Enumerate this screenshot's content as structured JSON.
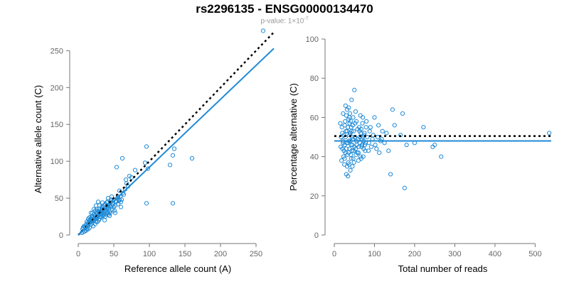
{
  "title": "rs2296135 - ENSG00000134470",
  "subtitle": {
    "prefix": "p-value: 1×10",
    "exponent": "-7"
  },
  "colors": {
    "points": "#1f8ad6",
    "fit_line": "#1f8ad6",
    "reference_line": "#000000",
    "axis": "#777777"
  },
  "chart_data": [
    {
      "type": "scatter",
      "xlabel": "Reference allele count (A)",
      "ylabel": "Alternative allele count (C)",
      "xlim": [
        0,
        280
      ],
      "ylim": [
        0,
        260
      ],
      "xticks": [
        0,
        50,
        100,
        150,
        200,
        250
      ],
      "yticks": [
        0,
        50,
        100,
        150,
        200,
        250
      ],
      "grid": false,
      "reference_line": {
        "style": "dotted",
        "slope": 1,
        "intercept": 0
      },
      "fit_line": {
        "style": "solid",
        "slope": 0.92,
        "intercept": 0
      },
      "points": [
        [
          260,
          277
        ],
        [
          160,
          104
        ],
        [
          133,
          43
        ],
        [
          133,
          108
        ],
        [
          135,
          117
        ],
        [
          129,
          95
        ],
        [
          96,
          120
        ],
        [
          96,
          43
        ],
        [
          98,
          90
        ],
        [
          94,
          98
        ],
        [
          62,
          104
        ],
        [
          54,
          92
        ],
        [
          72,
          80
        ],
        [
          75,
          78
        ],
        [
          80,
          88
        ],
        [
          67,
          75
        ],
        [
          63,
          57
        ],
        [
          58,
          60
        ],
        [
          56,
          42
        ],
        [
          60,
          38
        ],
        [
          55,
          50
        ],
        [
          50,
          48
        ],
        [
          48,
          35
        ],
        [
          45,
          45
        ],
        [
          43,
          28
        ],
        [
          42,
          50
        ],
        [
          40,
          36
        ],
        [
          38,
          42
        ],
        [
          36,
          30
        ],
        [
          35,
          26
        ],
        [
          34,
          44
        ],
        [
          33,
          38
        ],
        [
          32,
          24
        ],
        [
          31,
          32
        ],
        [
          30,
          22
        ],
        [
          29,
          35
        ],
        [
          28,
          27
        ],
        [
          27,
          18
        ],
        [
          26,
          30
        ],
        [
          25,
          40
        ],
        [
          24,
          15
        ],
        [
          23,
          22
        ],
        [
          22,
          28
        ],
        [
          21,
          12
        ],
        [
          20,
          19
        ],
        [
          19,
          25
        ],
        [
          18,
          14
        ],
        [
          17,
          20
        ],
        [
          16,
          10
        ],
        [
          15,
          16
        ],
        [
          14,
          8
        ],
        [
          13,
          12
        ],
        [
          12,
          18
        ],
        [
          11,
          6
        ],
        [
          10,
          10
        ],
        [
          9,
          5
        ],
        [
          8,
          12
        ],
        [
          7,
          4
        ],
        [
          6,
          8
        ],
        [
          5,
          3
        ],
        [
          37,
          20
        ],
        [
          39,
          28
        ],
        [
          41,
          40
        ],
        [
          44,
          32
        ],
        [
          46,
          38
        ],
        [
          47,
          52
        ],
        [
          49,
          42
        ],
        [
          51,
          33
        ],
        [
          53,
          45
        ],
        [
          52,
          30
        ],
        [
          57,
          46
        ],
        [
          59,
          52
        ],
        [
          61,
          48
        ],
        [
          64,
          55
        ],
        [
          66,
          62
        ],
        [
          68,
          70
        ],
        [
          70,
          66
        ],
        [
          28,
          45
        ],
        [
          30,
          40
        ],
        [
          26,
          35
        ],
        [
          24,
          33
        ],
        [
          22,
          20
        ],
        [
          20,
          24
        ],
        [
          18,
          30
        ],
        [
          16,
          24
        ],
        [
          30,
          30
        ],
        [
          32,
          28
        ],
        [
          34,
          33
        ],
        [
          36,
          40
        ],
        [
          38,
          25
        ],
        [
          40,
          30
        ],
        [
          42,
          38
        ],
        [
          44,
          40
        ],
        [
          25,
          25
        ],
        [
          27,
          24
        ],
        [
          29,
          29
        ],
        [
          31,
          31
        ],
        [
          33,
          35
        ],
        [
          35,
          34
        ],
        [
          15,
          20
        ],
        [
          17,
          17
        ],
        [
          19,
          19
        ],
        [
          21,
          22
        ],
        [
          23,
          26
        ],
        [
          13,
          16
        ],
        [
          11,
          14
        ],
        [
          9,
          11
        ],
        [
          7,
          10
        ],
        [
          12,
          8
        ],
        [
          14,
          13
        ],
        [
          25,
          18
        ],
        [
          27,
          30
        ],
        [
          29,
          20
        ],
        [
          31,
          25
        ],
        [
          33,
          29
        ],
        [
          35,
          38
        ],
        [
          37,
          33
        ],
        [
          39,
          34
        ],
        [
          41,
          45
        ],
        [
          43,
          36
        ],
        [
          45,
          30
        ],
        [
          22,
          35
        ],
        [
          24,
          26
        ],
        [
          26,
          22
        ],
        [
          28,
          32
        ],
        [
          20,
          30
        ],
        [
          18,
          22
        ],
        [
          16,
          18
        ],
        [
          14,
          22
        ],
        [
          48,
          44
        ],
        [
          50,
          38
        ],
        [
          52,
          40
        ],
        [
          54,
          46
        ],
        [
          56,
          52
        ],
        [
          58,
          48
        ],
        [
          60,
          45
        ],
        [
          46,
          48
        ],
        [
          44,
          26
        ],
        [
          42,
          30
        ],
        [
          40,
          44
        ],
        [
          38,
          36
        ],
        [
          36,
          28
        ]
      ]
    },
    {
      "type": "scatter",
      "xlabel": "Total number of reads",
      "ylabel": "Percentage alternative (C)",
      "xlim": [
        0,
        540
      ],
      "ylim": [
        0,
        100
      ],
      "xticks": [
        0,
        100,
        200,
        300,
        400,
        500
      ],
      "yticks": [
        0,
        20,
        40,
        60,
        80,
        100
      ],
      "grid": false,
      "reference_line": {
        "style": "dotted",
        "value": 50.5
      },
      "fit_line": {
        "style": "solid",
        "value": 48
      },
      "points": [
        [
          535,
          52
        ],
        [
          266,
          40
        ],
        [
          250,
          46
        ],
        [
          245,
          45
        ],
        [
          222,
          55
        ],
        [
          200,
          47
        ],
        [
          180,
          46
        ],
        [
          175,
          24
        ],
        [
          170,
          62
        ],
        [
          165,
          51
        ],
        [
          150,
          56
        ],
        [
          145,
          64
        ],
        [
          140,
          31
        ],
        [
          135,
          43
        ],
        [
          130,
          52
        ],
        [
          125,
          47
        ],
        [
          120,
          53
        ],
        [
          115,
          48
        ],
        [
          110,
          56
        ],
        [
          105,
          44
        ],
        [
          100,
          60
        ],
        [
          95,
          49
        ],
        [
          90,
          55
        ],
        [
          85,
          43
        ],
        [
          80,
          58
        ],
        [
          78,
          47
        ],
        [
          75,
          52
        ],
        [
          72,
          40
        ],
        [
          70,
          57
        ],
        [
          68,
          45
        ],
        [
          65,
          61
        ],
        [
          63,
          50
        ],
        [
          60,
          38
        ],
        [
          58,
          54
        ],
        [
          55,
          48
        ],
        [
          53,
          63
        ],
        [
          50,
          74
        ],
        [
          48,
          43
        ],
        [
          46,
          56
        ],
        [
          45,
          35
        ],
        [
          44,
          50
        ],
        [
          43,
          69
        ],
        [
          42,
          46
        ],
        [
          41,
          58
        ],
        [
          40,
          33
        ],
        [
          39,
          52
        ],
        [
          38,
          44
        ],
        [
          37,
          60
        ],
        [
          36,
          48
        ],
        [
          35,
          37
        ],
        [
          34,
          55
        ],
        [
          33,
          41
        ],
        [
          32,
          64
        ],
        [
          31,
          47
        ],
        [
          30,
          31
        ],
        [
          29,
          53
        ],
        [
          28,
          42
        ],
        [
          27,
          58
        ],
        [
          26,
          46
        ],
        [
          25,
          36
        ],
        [
          24,
          51
        ],
        [
          23,
          40
        ],
        [
          22,
          62
        ],
        [
          21,
          48
        ],
        [
          20,
          44
        ],
        [
          19,
          55
        ],
        [
          18,
          38
        ],
        [
          17,
          50
        ],
        [
          16,
          45
        ],
        [
          15,
          57
        ],
        [
          60,
          42
        ],
        [
          62,
          55
        ],
        [
          64,
          47
        ],
        [
          66,
          52
        ],
        [
          67,
          39
        ],
        [
          69,
          49
        ],
        [
          71,
          60
        ],
        [
          73,
          44
        ],
        [
          74,
          51
        ],
        [
          76,
          46
        ],
        [
          56,
          46
        ],
        [
          54,
          41
        ],
        [
          52,
          57
        ],
        [
          50,
          45
        ],
        [
          48,
          53
        ],
        [
          47,
          39
        ],
        [
          46,
          49
        ],
        [
          44,
          43
        ],
        [
          42,
          55
        ],
        [
          40,
          48
        ],
        [
          38,
          51
        ],
        [
          36,
          42
        ],
        [
          34,
          47
        ],
        [
          32,
          53
        ],
        [
          30,
          44
        ],
        [
          28,
          50
        ],
        [
          26,
          56
        ],
        [
          24,
          43
        ],
        [
          22,
          47
        ],
        [
          20,
          52
        ],
        [
          35,
          59
        ],
        [
          37,
          36
        ],
        [
          39,
          62
        ],
        [
          41,
          41
        ],
        [
          43,
          53
        ],
        [
          45,
          46
        ],
        [
          47,
          60
        ],
        [
          49,
          37
        ],
        [
          51,
          50
        ],
        [
          53,
          44
        ],
        [
          55,
          58
        ],
        [
          57,
          42
        ],
        [
          59,
          49
        ],
        [
          61,
          45
        ],
        [
          63,
          53
        ],
        [
          65,
          40
        ],
        [
          67,
          54
        ],
        [
          69,
          46
        ],
        [
          71,
          50
        ],
        [
          73,
          48
        ],
        [
          77,
          43
        ],
        [
          79,
          55
        ],
        [
          82,
          50
        ],
        [
          86,
          47
        ],
        [
          88,
          53
        ],
        [
          92,
          45
        ],
        [
          97,
          51
        ],
        [
          102,
          46
        ],
        [
          108,
          50
        ],
        [
          112,
          42
        ],
        [
          118,
          49
        ],
        [
          28,
          66
        ],
        [
          30,
          61
        ],
        [
          26,
          39
        ],
        [
          32,
          35
        ],
        [
          34,
          30
        ],
        [
          36,
          65
        ],
        [
          38,
          57
        ],
        [
          40,
          52
        ],
        [
          42,
          39
        ]
      ]
    }
  ]
}
